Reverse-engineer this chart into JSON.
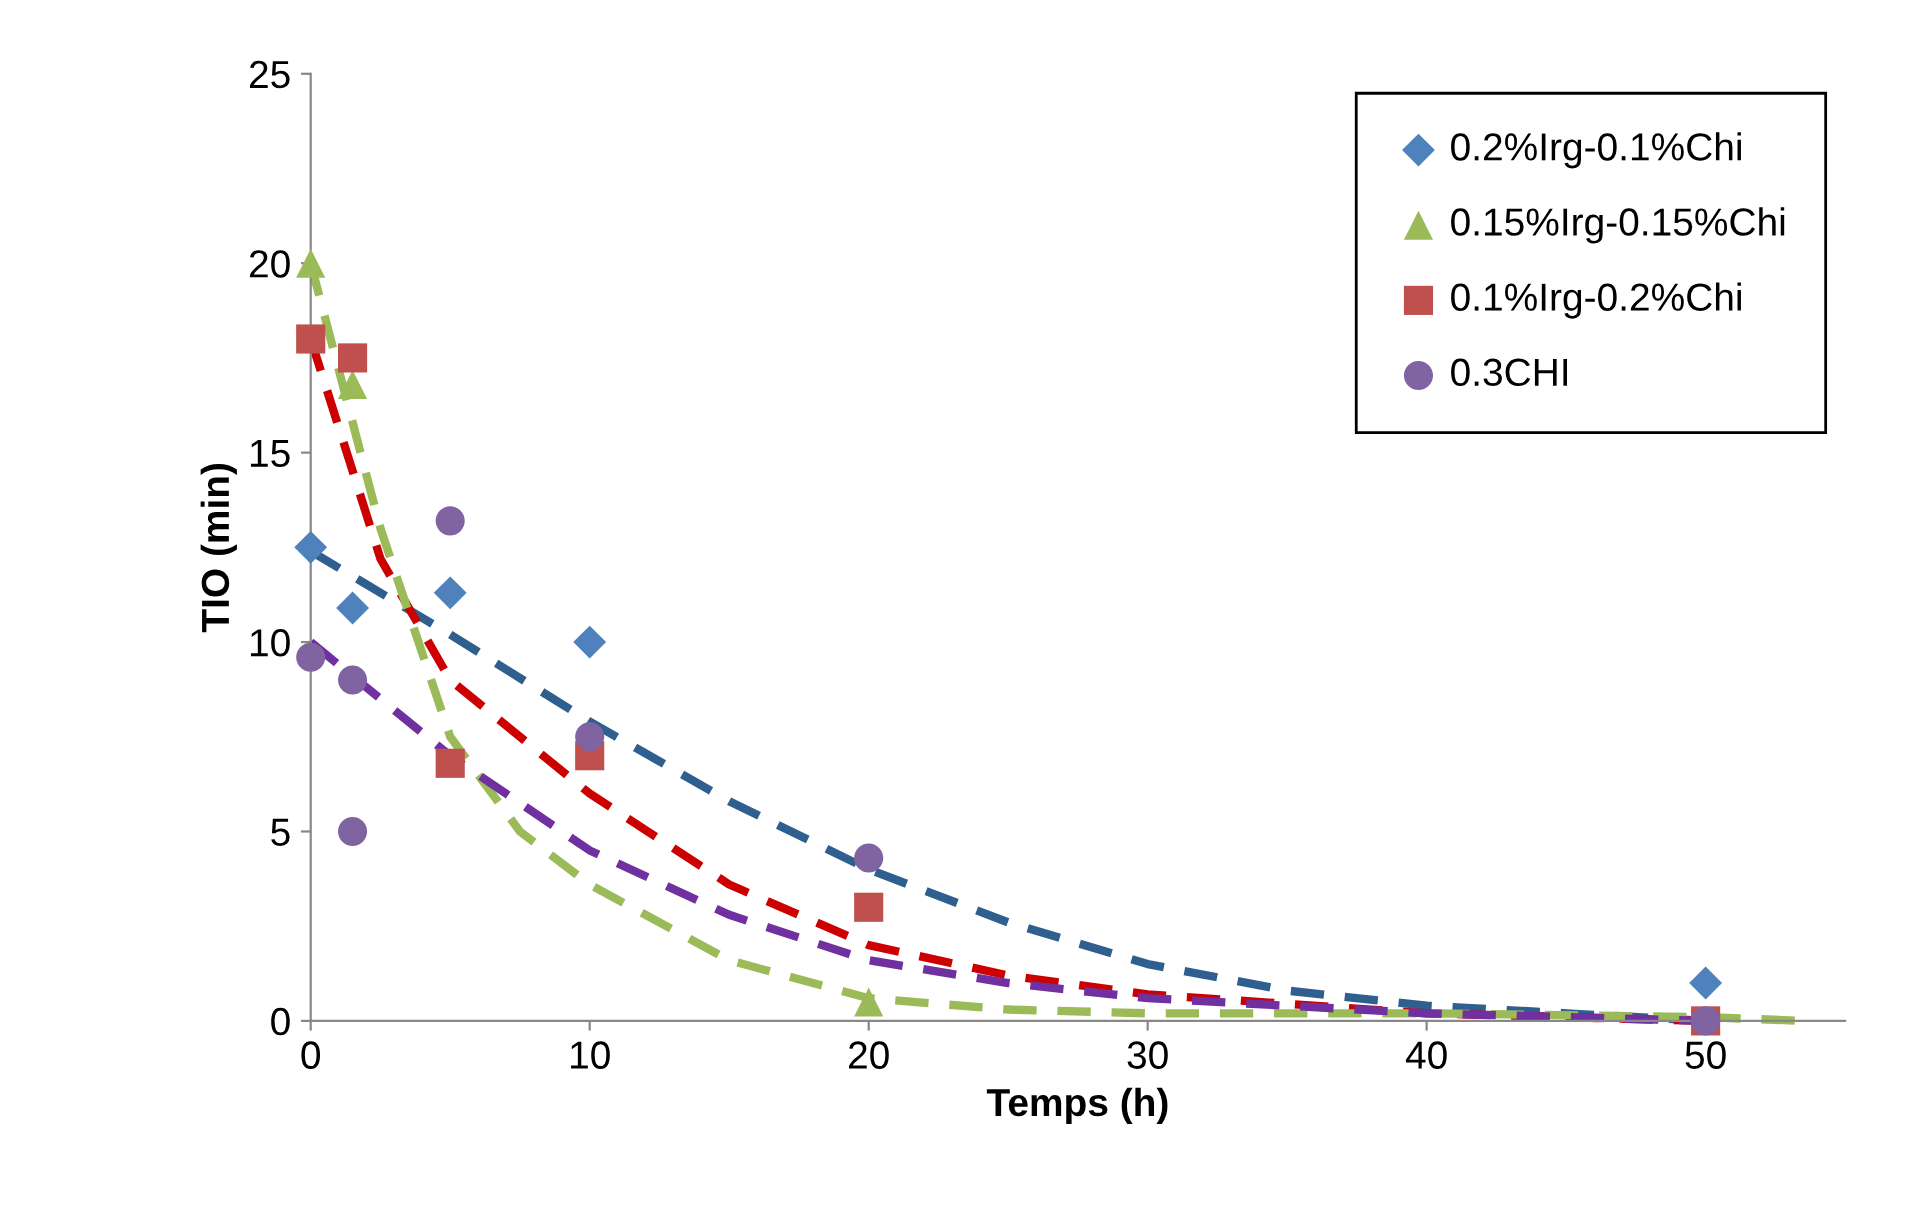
{
  "chart_data": {
    "type": "scatter",
    "xlabel": "Temps (h)",
    "ylabel": "TIO (min)",
    "xlim": [
      0,
      55
    ],
    "ylim": [
      0,
      25
    ],
    "xticks": [
      0,
      10,
      20,
      30,
      40,
      50
    ],
    "yticks": [
      0,
      5,
      10,
      15,
      20,
      25
    ],
    "grid": false,
    "legend": "top right",
    "series": [
      {
        "name": "0.2%Irg-0.1%Chi",
        "color": "#4f81bd",
        "marker": "diamond",
        "x": [
          0,
          1.5,
          5,
          10,
          50
        ],
        "values": [
          12.5,
          10.9,
          11.3,
          10,
          1
        ]
      },
      {
        "name": "0.15%Irg-0.15%Chi",
        "color": "#9bbb59",
        "marker": "triangle",
        "x": [
          0,
          1.5,
          20
        ],
        "values": [
          20,
          16.8,
          0.5
        ]
      },
      {
        "name": "0.1%Irg-0.2%Chi",
        "color": "#c0504d",
        "marker": "square",
        "x": [
          0,
          1.5,
          5,
          10,
          20,
          50
        ],
        "values": [
          18,
          17.5,
          6.8,
          7,
          3,
          0
        ]
      },
      {
        "name": "0.3CHI",
        "color": "#8064a2",
        "marker": "circle",
        "x": [
          0,
          1.5,
          1.5,
          5,
          10,
          20,
          50
        ],
        "values": [
          9.6,
          9,
          5,
          13.2,
          7.5,
          4.3,
          0
        ]
      },
      {
        "type": "line",
        "line_style": "dashed",
        "color": "#2f5f8f",
        "x": [
          0,
          5,
          10,
          15,
          20,
          25,
          30,
          35,
          40,
          45,
          50
        ],
        "values": [
          12.4,
          10.2,
          7.9,
          5.8,
          4,
          2.6,
          1.5,
          0.8,
          0.4,
          0.2,
          0
        ]
      },
      {
        "type": "line",
        "line_style": "dashed",
        "color": "#cc0000",
        "x": [
          0,
          2.5,
          5,
          10,
          15,
          20,
          25,
          30,
          40,
          50
        ],
        "values": [
          18,
          12.2,
          9,
          6,
          3.6,
          2,
          1.2,
          0.7,
          0.2,
          0
        ]
      },
      {
        "type": "line",
        "line_style": "dashed",
        "color": "#9bbb59",
        "x": [
          0,
          2.5,
          5,
          7.5,
          10,
          15,
          20,
          25,
          30,
          40,
          50,
          53.5
        ],
        "values": [
          20,
          13,
          7.5,
          5,
          3.6,
          1.6,
          0.6,
          0.3,
          0.2,
          0.2,
          0.1,
          0
        ]
      },
      {
        "type": "line",
        "line_style": "dashed",
        "color": "#7030a0",
        "x": [
          0,
          5,
          10,
          15,
          20,
          25,
          30,
          40,
          50
        ],
        "values": [
          10,
          7,
          4.5,
          2.8,
          1.6,
          1,
          0.6,
          0.2,
          0
        ]
      }
    ]
  }
}
